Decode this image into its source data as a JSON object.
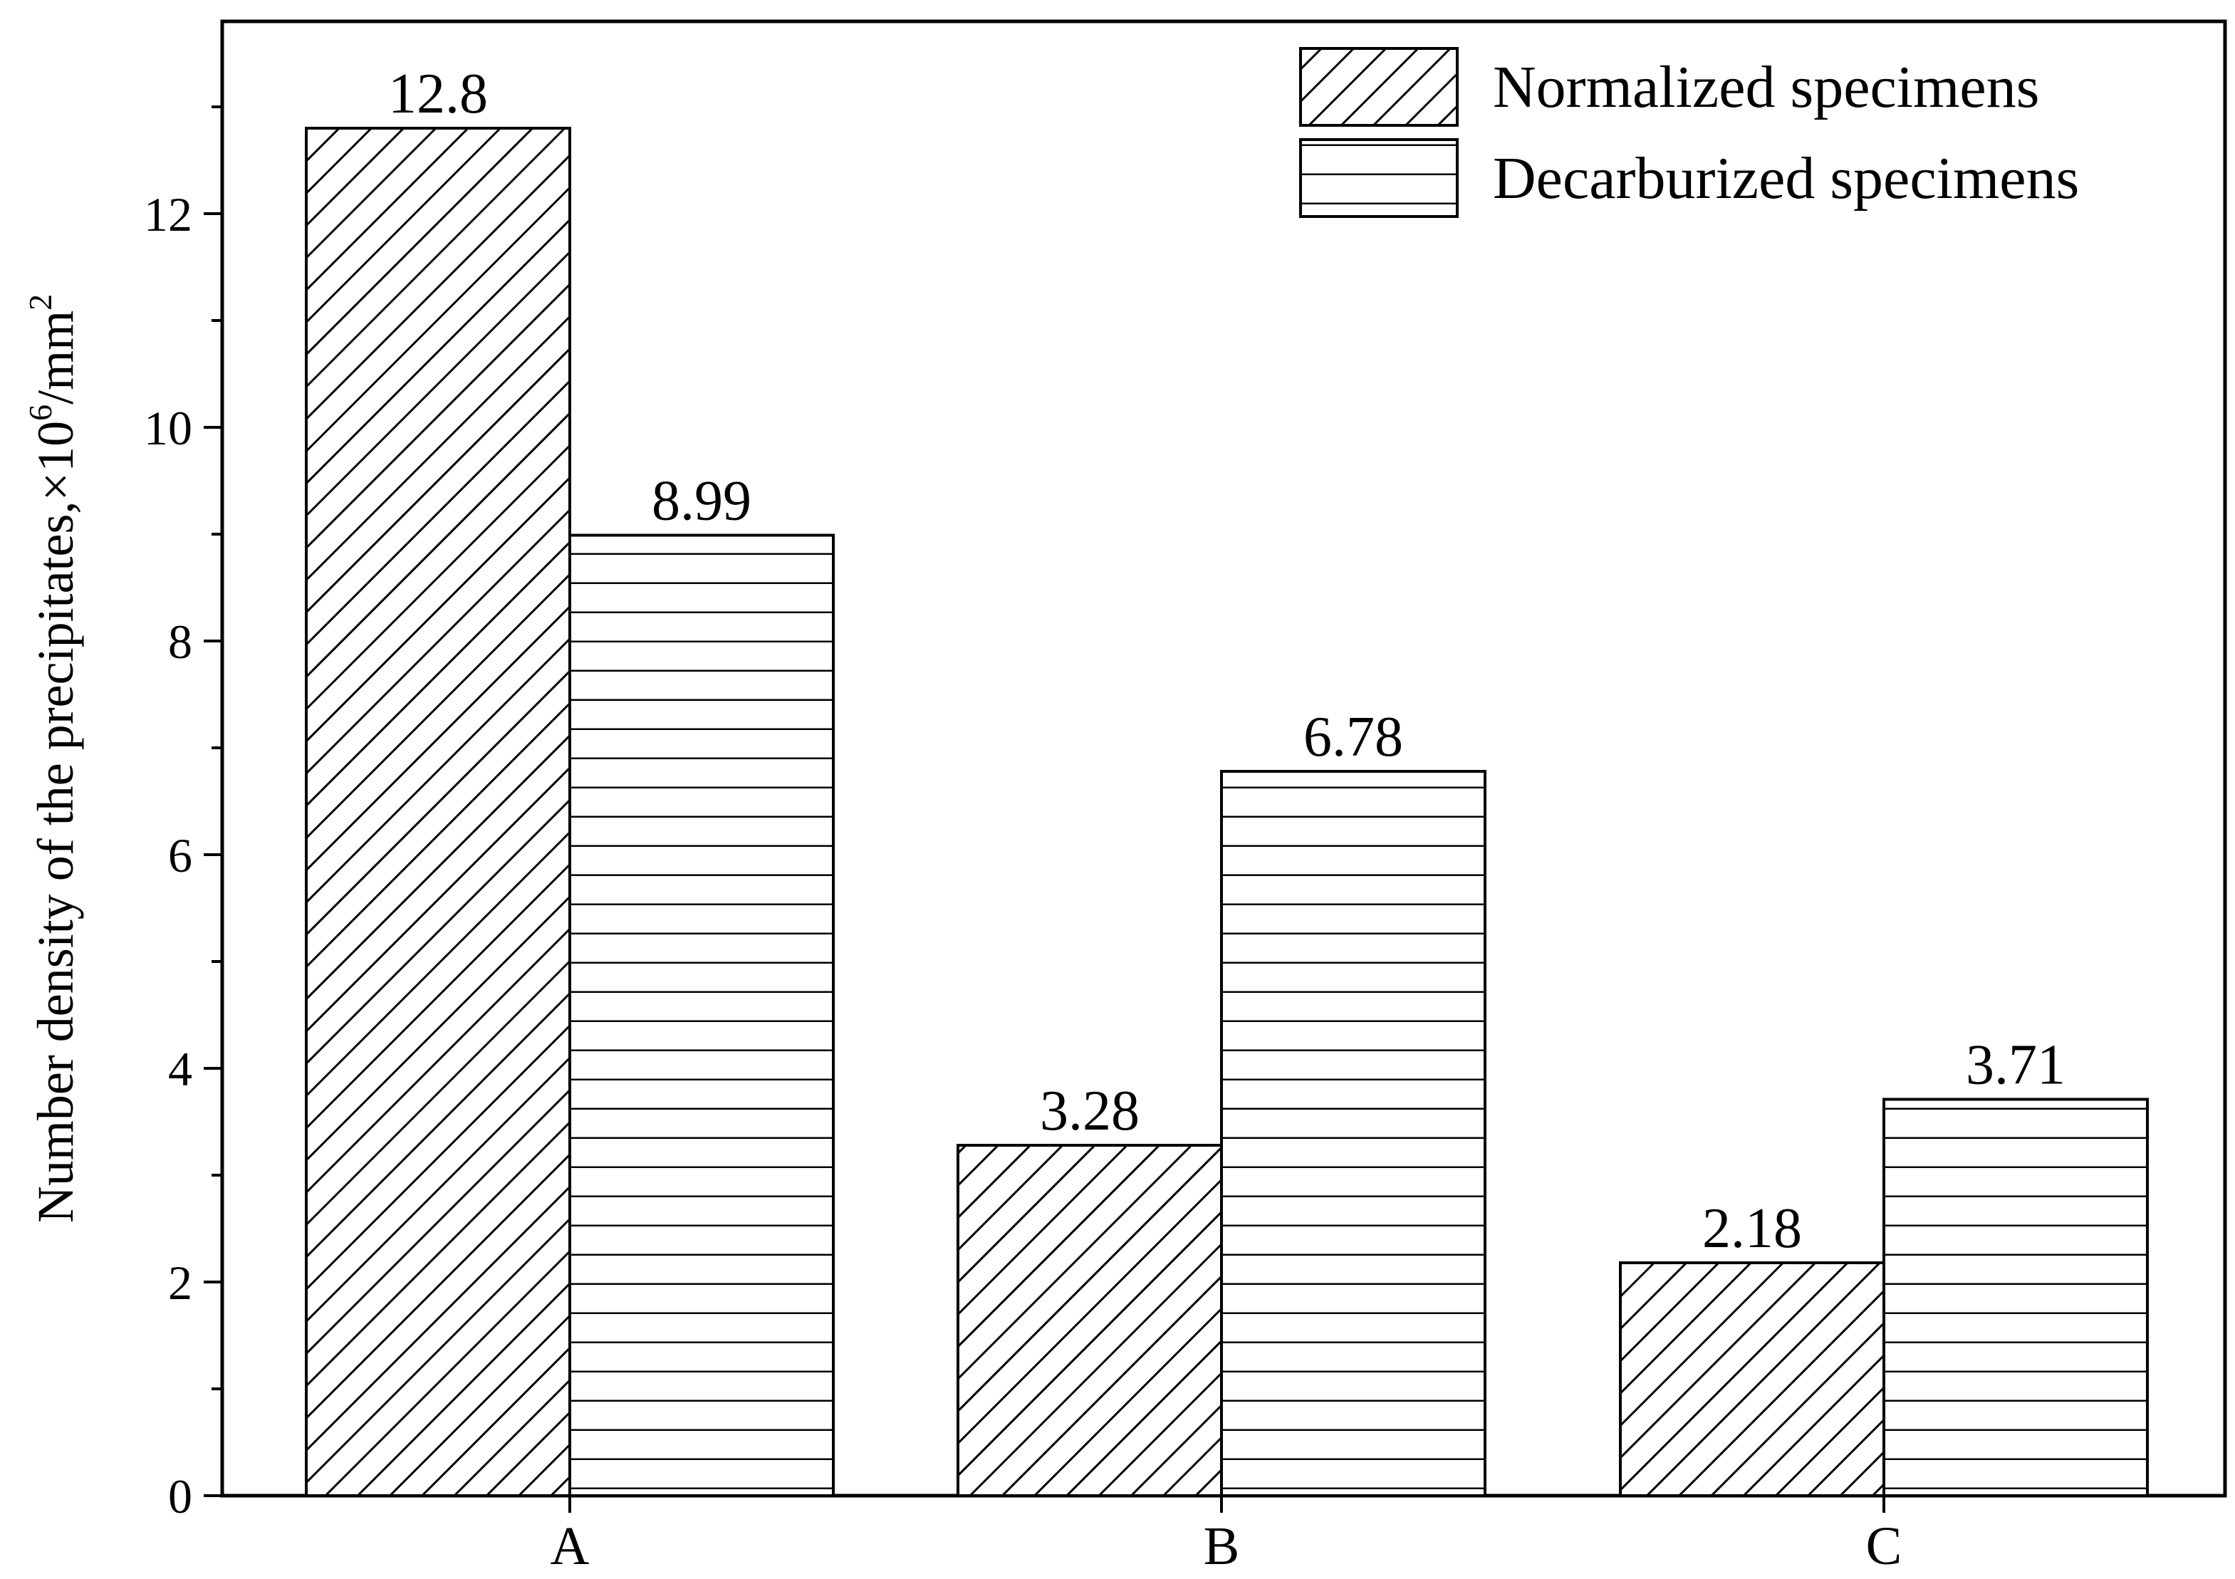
{
  "chart_data": {
    "type": "bar",
    "title": "",
    "xlabel": "",
    "ylabel": {
      "text": "Number density of the precipitates,×10",
      "sup1": "6",
      "unit": "/mm",
      "sup2": "2"
    },
    "categories": [
      "A",
      "B",
      "C"
    ],
    "series": [
      {
        "name": "Normalized specimens",
        "values": [
          12.8,
          3.28,
          2.18
        ],
        "pattern": "diagonal-hatch"
      },
      {
        "name": "Decarburized specimens",
        "values": [
          8.99,
          6.78,
          3.71
        ],
        "pattern": "horizontal-lines"
      }
    ],
    "data_labels": [
      [
        "12.8",
        "3.28",
        "2.18"
      ],
      [
        "8.99",
        "6.78",
        "3.71"
      ]
    ],
    "ylim": [
      0,
      13.8
    ],
    "yticks": [
      0,
      2,
      4,
      6,
      8,
      10,
      12
    ],
    "ytick_labels": [
      "0",
      "2",
      "4",
      "6",
      "8",
      "10",
      "12"
    ],
    "grid": false,
    "legend_position": "top-right",
    "colors": {
      "stroke": "#000000",
      "background": "#ffffff"
    }
  }
}
